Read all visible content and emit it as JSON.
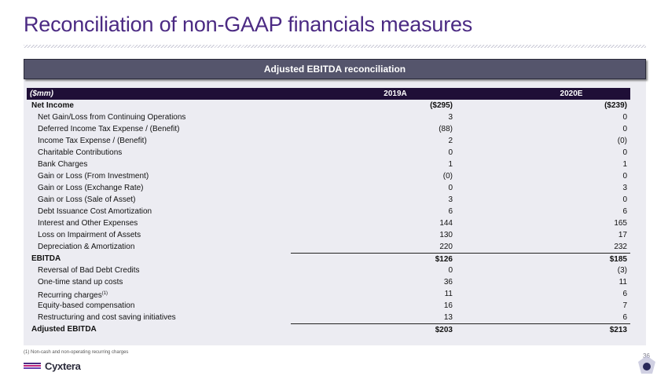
{
  "slide": {
    "title": "Reconciliation of non-GAAP financials measures",
    "section_header": "Adjusted EBITDA reconciliation",
    "footnote": "(1) Non-cash and non-operating recurring charges",
    "page_number": "36",
    "logo_text": "Cyxtera",
    "colors": {
      "title": "#4b2a83",
      "section_header_bg": "#55556c",
      "table_header_bg": "#1f0f37",
      "panel_bg": "#ececf2",
      "logo_bars": [
        "#4b2a83",
        "#c0237a",
        "#6a3fb0"
      ]
    }
  },
  "table": {
    "headers": {
      "label": "($mm)",
      "col1": "2019A",
      "col2": "2020E"
    },
    "rows": [
      {
        "label": "Net Income",
        "v2019": "($295)",
        "v2020": "($239)",
        "bold": true
      },
      {
        "label": "Net Gain/Loss from Continuing Operations",
        "v2019": "3",
        "v2020": "0"
      },
      {
        "label": "Deferred Income Tax Expense / (Benefit)",
        "v2019": "(88)",
        "v2020": "0"
      },
      {
        "label": "Income Tax Expense / (Benefit)",
        "v2019": "2",
        "v2020": "(0)"
      },
      {
        "label": "Charitable Contributions",
        "v2019": "0",
        "v2020": "0"
      },
      {
        "label": "Bank Charges",
        "v2019": "1",
        "v2020": "1"
      },
      {
        "label": "Gain or Loss (From Investment)",
        "v2019": "(0)",
        "v2020": "0"
      },
      {
        "label": "Gain or Loss (Exchange Rate)",
        "v2019": "0",
        "v2020": "3"
      },
      {
        "label": "Gain or Loss (Sale of Asset)",
        "v2019": "3",
        "v2020": "0"
      },
      {
        "label": "Debt Issuance Cost Amortization",
        "v2019": "6",
        "v2020": "6"
      },
      {
        "label": "Interest and Other Expenses",
        "v2019": "144",
        "v2020": "165"
      },
      {
        "label": "Loss on Impairment of Assets",
        "v2019": "130",
        "v2020": "17"
      },
      {
        "label": "Depreciation & Amortization",
        "v2019": "220",
        "v2020": "232"
      },
      {
        "label": "EBITDA",
        "v2019": "$126",
        "v2020": "$185",
        "bold": true,
        "line_above": true
      },
      {
        "label": "Reversal of Bad Debt Credits",
        "v2019": "0",
        "v2020": "(3)"
      },
      {
        "label": "One-time stand up costs",
        "v2019": "36",
        "v2020": "11"
      },
      {
        "label": "Recurring charges",
        "sup": "(1)",
        "v2019": "11",
        "v2020": "6"
      },
      {
        "label": "Equity-based compensation",
        "v2019": "16",
        "v2020": "7"
      },
      {
        "label": "Restructuring and cost saving initiatives",
        "v2019": "13",
        "v2020": "6"
      },
      {
        "label": "Adjusted EBITDA",
        "v2019": "$203",
        "v2020": "$213",
        "bold": true,
        "line_above": true
      }
    ]
  }
}
